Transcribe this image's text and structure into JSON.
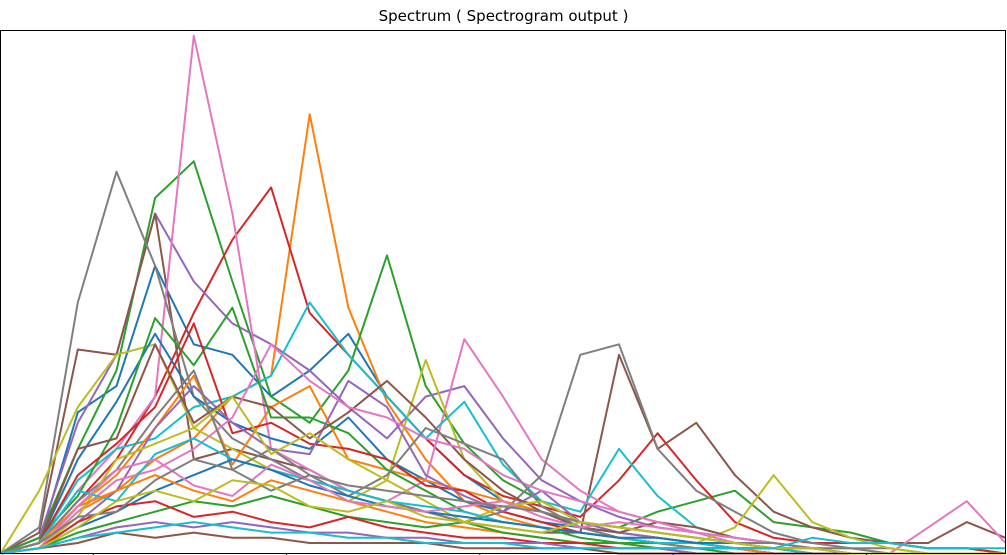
{
  "chart_data": {
    "type": "line",
    "title": "Spectrum ( Spectrogram output )",
    "xlabel": "",
    "ylabel": "",
    "xlim": [
      0,
      26
    ],
    "ylim": [
      0,
      1.0
    ],
    "grid": false,
    "legend": "none",
    "color_cycle": [
      "#1f77b4",
      "#ff7f0e",
      "#2ca02c",
      "#d62728",
      "#9467bd",
      "#8c564b",
      "#e377c2",
      "#7f7f7f",
      "#bcbd22",
      "#17becf"
    ],
    "x": [
      0,
      1,
      2,
      3,
      4,
      5,
      6,
      7,
      8,
      9,
      10,
      11,
      12,
      13,
      14,
      15,
      16,
      17,
      18,
      19,
      20,
      21,
      22,
      23,
      24,
      25,
      26
    ],
    "series": [
      {
        "values": [
          0,
          0.02,
          0.27,
          0.32,
          0.55,
          0.4,
          0.38,
          0.3,
          0.35,
          0.42,
          0.3,
          0.22,
          0.15,
          0.1,
          0.08,
          0.05,
          0.03,
          0.02,
          0.02,
          0.01,
          0.01,
          0,
          0,
          0,
          0,
          0,
          0
        ]
      },
      {
        "values": [
          0,
          0.01,
          0.08,
          0.12,
          0.18,
          0.22,
          0.3,
          0.34,
          0.84,
          0.47,
          0.29,
          0.18,
          0.1,
          0.07,
          0.05,
          0.04,
          0.03,
          0.02,
          0.01,
          0.01,
          0,
          0,
          0,
          0,
          0,
          0,
          0
        ]
      },
      {
        "values": [
          0,
          0.03,
          0.2,
          0.35,
          0.68,
          0.75,
          0.52,
          0.3,
          0.25,
          0.35,
          0.57,
          0.32,
          0.21,
          0.14,
          0.1,
          0.06,
          0.05,
          0.08,
          0.1,
          0.12,
          0.06,
          0.05,
          0.04,
          0.02,
          0.01,
          0.01,
          0
        ]
      },
      {
        "values": [
          0,
          0.02,
          0.1,
          0.18,
          0.3,
          0.46,
          0.6,
          0.7,
          0.46,
          0.38,
          0.3,
          0.22,
          0.15,
          0.11,
          0.09,
          0.07,
          0.14,
          0.23,
          0.14,
          0.06,
          0.03,
          0.02,
          0.02,
          0.02,
          0.01,
          0.01,
          0
        ]
      },
      {
        "values": [
          0,
          0.03,
          0.25,
          0.38,
          0.65,
          0.52,
          0.44,
          0.4,
          0.35,
          0.28,
          0.22,
          0.3,
          0.32,
          0.22,
          0.14,
          0.1,
          0.07,
          0.05,
          0.04,
          0.03,
          0.02,
          0.01,
          0,
          0,
          0,
          0,
          0
        ]
      },
      {
        "values": [
          0,
          0.04,
          0.39,
          0.38,
          0.65,
          0.18,
          0.2,
          0.18,
          0.16,
          0.12,
          0.1,
          0.08,
          0.06,
          0.05,
          0.04,
          0.04,
          0.38,
          0.2,
          0.25,
          0.15,
          0.08,
          0.05,
          0.03,
          0.02,
          0.02,
          0.06,
          0.03
        ]
      },
      {
        "values": [
          0,
          0.02,
          0.12,
          0.2,
          0.3,
          0.99,
          0.65,
          0.2,
          0.16,
          0.12,
          0.1,
          0.14,
          0.41,
          0.3,
          0.18,
          0.12,
          0.08,
          0.06,
          0.04,
          0.02,
          0.01,
          0.01,
          0,
          0,
          0.05,
          0.1,
          0.02
        ]
      },
      {
        "values": [
          0,
          0.05,
          0.48,
          0.73,
          0.55,
          0.3,
          0.22,
          0.18,
          0.14,
          0.12,
          0.1,
          0.08,
          0.06,
          0.08,
          0.15,
          0.38,
          0.4,
          0.2,
          0.12,
          0.08,
          0.04,
          0.02,
          0.01,
          0.01,
          0,
          0,
          0
        ]
      },
      {
        "values": [
          0,
          0.12,
          0.28,
          0.38,
          0.4,
          0.24,
          0.2,
          0.16,
          0.14,
          0.1,
          0.14,
          0.37,
          0.18,
          0.1,
          0.08,
          0.06,
          0.04,
          0.03,
          0.02,
          0.05,
          0.15,
          0.06,
          0.03,
          0.01,
          0,
          0,
          0
        ]
      },
      {
        "values": [
          0,
          0.02,
          0.14,
          0.2,
          0.22,
          0.28,
          0.3,
          0.34,
          0.48,
          0.38,
          0.3,
          0.22,
          0.29,
          0.17,
          0.1,
          0.08,
          0.2,
          0.11,
          0.05,
          0.03,
          0.02,
          0.01,
          0,
          0,
          0,
          0,
          0
        ]
      },
      {
        "values": [
          0,
          0.02,
          0.18,
          0.29,
          0.42,
          0.3,
          0.25,
          0.22,
          0.2,
          0.26,
          0.18,
          0.14,
          0.1,
          0.08,
          0.06,
          0.05,
          0.04,
          0.03,
          0.02,
          0.01,
          0,
          0,
          0,
          0,
          0,
          0,
          0
        ]
      },
      {
        "values": [
          0,
          0.01,
          0.09,
          0.15,
          0.24,
          0.34,
          0.17,
          0.28,
          0.32,
          0.18,
          0.16,
          0.14,
          0.12,
          0.1,
          0.08,
          0.06,
          0.05,
          0.04,
          0.03,
          0.02,
          0.01,
          0,
          0,
          0,
          0,
          0,
          0
        ]
      },
      {
        "values": [
          0,
          0.03,
          0.11,
          0.24,
          0.45,
          0.36,
          0.47,
          0.26,
          0.26,
          0.23,
          0.16,
          0.12,
          0.08,
          0.06,
          0.05,
          0.03,
          0.02,
          0.02,
          0.01,
          0.01,
          0,
          0,
          0,
          0,
          0,
          0,
          0
        ]
      },
      {
        "values": [
          0,
          0.02,
          0.15,
          0.21,
          0.28,
          0.44,
          0.23,
          0.25,
          0.21,
          0.2,
          0.18,
          0.13,
          0.12,
          0.08,
          0.06,
          0.04,
          0.03,
          0.02,
          0.02,
          0.01,
          0.01,
          0,
          0,
          0,
          0,
          0,
          0
        ]
      },
      {
        "values": [
          0,
          0.01,
          0.06,
          0.12,
          0.24,
          0.32,
          0.25,
          0.2,
          0.19,
          0.33,
          0.28,
          0.15,
          0.11,
          0.08,
          0.12,
          0.06,
          0.04,
          0.03,
          0.02,
          0.01,
          0,
          0,
          0,
          0,
          0,
          0,
          0
        ]
      },
      {
        "values": [
          0,
          0.02,
          0.2,
          0.22,
          0.4,
          0.25,
          0.3,
          0.28,
          0.22,
          0.27,
          0.33,
          0.26,
          0.18,
          0.12,
          0.08,
          0.05,
          0.04,
          0.06,
          0.05,
          0.03,
          0.02,
          0.01,
          0,
          0,
          0,
          0,
          0
        ]
      },
      {
        "values": [
          0,
          0.01,
          0.08,
          0.14,
          0.16,
          0.2,
          0.26,
          0.4,
          0.33,
          0.28,
          0.26,
          0.22,
          0.2,
          0.15,
          0.12,
          0.1,
          0.08,
          0.06,
          0.04,
          0.03,
          0.02,
          0.01,
          0,
          0,
          0,
          0,
          0
        ]
      },
      {
        "values": [
          0,
          0.02,
          0.1,
          0.16,
          0.26,
          0.35,
          0.16,
          0.2,
          0.15,
          0.11,
          0.15,
          0.24,
          0.21,
          0.18,
          0.09,
          0.05,
          0.03,
          0.02,
          0.01,
          0.01,
          0,
          0,
          0,
          0,
          0,
          0,
          0
        ]
      },
      {
        "values": [
          0,
          0.01,
          0.07,
          0.18,
          0.21,
          0.24,
          0.3,
          0.19,
          0.23,
          0.18,
          0.14,
          0.1,
          0.06,
          0.09,
          0.1,
          0.06,
          0.05,
          0.04,
          0.03,
          0.02,
          0.01,
          0,
          0,
          0,
          0,
          0,
          0
        ]
      },
      {
        "values": [
          0,
          0.02,
          0.12,
          0.1,
          0.19,
          0.22,
          0.18,
          0.16,
          0.14,
          0.12,
          0.1,
          0.09,
          0.08,
          0.06,
          0.05,
          0.04,
          0.03,
          0.02,
          0.02,
          0.01,
          0.01,
          0,
          0,
          0,
          0,
          0,
          0
        ]
      },
      {
        "values": [
          0,
          0.01,
          0.05,
          0.08,
          0.12,
          0.15,
          0.18,
          0.16,
          0.13,
          0.11,
          0.09,
          0.08,
          0.07,
          0.06,
          0.05,
          0.04,
          0.03,
          0.03,
          0.02,
          0.02,
          0.01,
          0.01,
          0,
          0,
          0,
          0,
          0
        ]
      },
      {
        "values": [
          0,
          0.02,
          0.09,
          0.12,
          0.15,
          0.12,
          0.1,
          0.14,
          0.12,
          0.1,
          0.08,
          0.06,
          0.05,
          0.04,
          0.03,
          0.02,
          0.02,
          0.01,
          0.01,
          0.01,
          0,
          0,
          0,
          0,
          0,
          0,
          0
        ]
      },
      {
        "values": [
          0,
          0.01,
          0.04,
          0.06,
          0.08,
          0.1,
          0.09,
          0.11,
          0.09,
          0.07,
          0.06,
          0.05,
          0.06,
          0.04,
          0.03,
          0.02,
          0.02,
          0.01,
          0.01,
          0,
          0,
          0,
          0,
          0,
          0,
          0,
          0
        ]
      },
      {
        "values": [
          0,
          0.01,
          0.06,
          0.09,
          0.1,
          0.07,
          0.08,
          0.06,
          0.05,
          0.07,
          0.05,
          0.04,
          0.03,
          0.03,
          0.02,
          0.02,
          0.01,
          0.01,
          0,
          0,
          0,
          0,
          0,
          0,
          0,
          0,
          0
        ]
      },
      {
        "values": [
          0,
          0.01,
          0.03,
          0.05,
          0.06,
          0.05,
          0.06,
          0.05,
          0.04,
          0.04,
          0.03,
          0.03,
          0.02,
          0.02,
          0.02,
          0.01,
          0.01,
          0.01,
          0,
          0,
          0,
          0,
          0,
          0,
          0,
          0,
          0
        ]
      },
      {
        "values": [
          0,
          0.01,
          0.02,
          0.04,
          0.03,
          0.04,
          0.03,
          0.03,
          0.02,
          0.02,
          0.02,
          0.02,
          0.01,
          0.01,
          0.01,
          0.01,
          0,
          0,
          0,
          0,
          0,
          0,
          0,
          0,
          0,
          0,
          0
        ]
      },
      {
        "values": [
          0,
          0.01,
          0.09,
          0.16,
          0.18,
          0.13,
          0.11,
          0.17,
          0.14,
          0.1,
          0.09,
          0.08,
          0.09,
          0.1,
          0.07,
          0.05,
          0.06,
          0.05,
          0.04,
          0.03,
          0.02,
          0.01,
          0.01,
          0,
          0,
          0,
          0
        ]
      },
      {
        "values": [
          0,
          0.02,
          0.07,
          0.08,
          0.14,
          0.18,
          0.16,
          0.12,
          0.15,
          0.13,
          0.12,
          0.11,
          0.1,
          0.09,
          0.08,
          0.06,
          0.05,
          0.04,
          0.03,
          0.02,
          0.02,
          0.01,
          0.01,
          0,
          0,
          0,
          0
        ]
      },
      {
        "values": [
          0,
          0.01,
          0.05,
          0.1,
          0.12,
          0.1,
          0.14,
          0.13,
          0.09,
          0.08,
          0.1,
          0.07,
          0.06,
          0.05,
          0.04,
          0.06,
          0.05,
          0.04,
          0.03,
          0.02,
          0.01,
          0.01,
          0,
          0,
          0,
          0,
          0
        ]
      },
      {
        "values": [
          0,
          0.01,
          0.03,
          0.04,
          0.05,
          0.06,
          0.05,
          0.04,
          0.04,
          0.03,
          0.03,
          0.02,
          0.02,
          0.02,
          0.01,
          0.01,
          0.01,
          0.01,
          0.01,
          0.01,
          0.01,
          0.03,
          0.02,
          0.02,
          0.01,
          0.01,
          0.01
        ]
      }
    ]
  }
}
